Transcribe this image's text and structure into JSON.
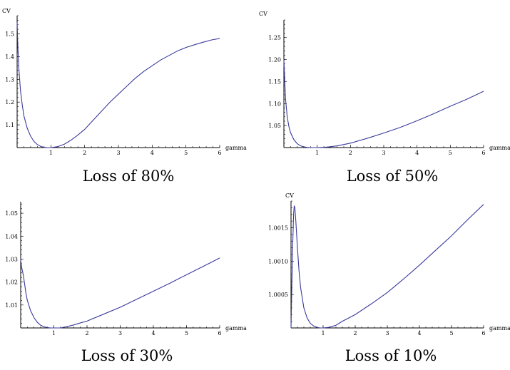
{
  "colors": {
    "curve": "#3a3a9c",
    "axis": "#000000"
  },
  "chart_data": [
    {
      "type": "line",
      "caption": "Loss of 80%",
      "xlabel": "gamma",
      "ylabel": "CV",
      "xlim": [
        0,
        6
      ],
      "ylim": [
        1.0,
        1.58
      ],
      "xticks": [
        1,
        2,
        3,
        4,
        5,
        6
      ],
      "yticks": [
        1.1,
        1.2,
        1.3,
        1.4,
        1.5
      ],
      "ytick_labels": [
        "1.1",
        "1.2",
        "1.3",
        "1.4",
        "1.5"
      ],
      "minor_yticks": 5,
      "grid": false,
      "series": [
        {
          "x": [
            0.0,
            0.02,
            0.05,
            0.1,
            0.15,
            0.2,
            0.3,
            0.4,
            0.5,
            0.6,
            0.7,
            0.8,
            0.9,
            1.0,
            1.2,
            1.4,
            1.6,
            1.8,
            2.0,
            2.25,
            2.5,
            2.75,
            3.0,
            3.25,
            3.5,
            3.75,
            4.0,
            4.25,
            4.5,
            4.75,
            5.0,
            5.25,
            5.5,
            5.75,
            6.0
          ],
          "y": [
            1.55,
            1.45,
            1.35,
            1.25,
            1.19,
            1.14,
            1.085,
            1.05,
            1.027,
            1.013,
            1.005,
            1.001,
            1.0,
            1.0,
            1.004,
            1.015,
            1.033,
            1.055,
            1.08,
            1.12,
            1.16,
            1.2,
            1.235,
            1.27,
            1.305,
            1.335,
            1.36,
            1.385,
            1.405,
            1.425,
            1.44,
            1.452,
            1.463,
            1.473,
            1.48
          ]
        }
      ]
    },
    {
      "type": "line",
      "caption": "Loss of 50%",
      "xlabel": "gamma",
      "ylabel": "CV",
      "xlim": [
        0,
        6
      ],
      "ylim": [
        1.0,
        1.29
      ],
      "xticks": [
        1,
        2,
        3,
        4,
        5,
        6
      ],
      "yticks": [
        1.05,
        1.1,
        1.15,
        1.2,
        1.25
      ],
      "ytick_labels": [
        "1.05",
        "1.10",
        "1.15",
        "1.20",
        "1.25"
      ],
      "minor_yticks": 5,
      "grid": false,
      "series": [
        {
          "x": [
            0.0,
            0.02,
            0.05,
            0.1,
            0.15,
            0.2,
            0.3,
            0.4,
            0.5,
            0.6,
            0.7,
            0.8,
            1.0,
            1.2,
            1.4,
            1.6,
            1.8,
            2.0,
            2.5,
            3.0,
            3.5,
            4.0,
            4.5,
            5.0,
            5.5,
            6.0
          ],
          "y": [
            1.2,
            1.16,
            1.11,
            1.07,
            1.048,
            1.034,
            1.018,
            1.009,
            1.004,
            1.0015,
            1.0005,
            1.0,
            1.0,
            1.0005,
            1.002,
            1.004,
            1.007,
            1.01,
            1.021,
            1.033,
            1.046,
            1.061,
            1.077,
            1.094,
            1.11,
            1.128
          ]
        }
      ]
    },
    {
      "type": "line",
      "caption": "Loss of 30%",
      "xlabel": "gamma",
      "ylabel": "",
      "xlim": [
        0,
        6
      ],
      "ylim": [
        1.0,
        1.055
      ],
      "xticks": [
        1,
        2,
        3,
        4,
        5,
        6
      ],
      "yticks": [
        1.01,
        1.02,
        1.03,
        1.04,
        1.05
      ],
      "ytick_labels": [
        "1.01",
        "1.02",
        "1.03",
        "1.04",
        "1.05"
      ],
      "minor_yticks": 5,
      "grid": false,
      "series": [
        {
          "x": [
            0.0,
            0.02,
            0.05,
            0.08,
            0.12,
            0.16,
            0.2,
            0.3,
            0.4,
            0.5,
            0.6,
            0.7,
            0.8,
            0.9,
            1.0,
            1.2,
            1.4,
            1.6,
            1.8,
            2.0,
            2.5,
            3.0,
            3.5,
            4.0,
            4.5,
            5.0,
            5.5,
            6.0
          ],
          "y": [
            1.03,
            1.027,
            1.025,
            1.023,
            1.019,
            1.015,
            1.012,
            1.0075,
            1.0045,
            1.0025,
            1.0012,
            1.0005,
            1.0002,
            1.0,
            1.0,
            1.0,
            1.0006,
            1.0013,
            1.0022,
            1.003,
            1.006,
            1.009,
            1.0125,
            1.016,
            1.0195,
            1.0232,
            1.0268,
            1.0305
          ]
        }
      ]
    },
    {
      "type": "line",
      "caption": "Loss of 10%",
      "xlabel": "gamma",
      "ylabel": "CV",
      "xlim": [
        0,
        6
      ],
      "ylim": [
        1.0,
        1.0019
      ],
      "xticks": [
        1,
        2,
        3,
        4,
        5,
        6
      ],
      "yticks": [
        1.0005,
        1.001,
        1.0015
      ],
      "ytick_labels": [
        "1.0005",
        "1.0010",
        "1.0015"
      ],
      "minor_yticks": 5,
      "grid": false,
      "series": [
        {
          "x": [
            0.0,
            0.02,
            0.05,
            0.08,
            0.1,
            0.12,
            0.15,
            0.2,
            0.25,
            0.3,
            0.4,
            0.5,
            0.6,
            0.7,
            0.8,
            0.9,
            1.0,
            1.2,
            1.4,
            1.6,
            1.8,
            2.0,
            2.5,
            3.0,
            3.5,
            4.0,
            4.5,
            5.0,
            5.5,
            6.0
          ],
          "y": [
            1.0,
            1.0005,
            1.0012,
            1.0017,
            1.00183,
            1.0018,
            1.0016,
            1.0012,
            1.00085,
            1.0006,
            1.0003,
            1.00015,
            1.00007,
            1.00003,
            1.00001,
            1.0,
            1.0,
            1.00001,
            1.00004,
            1.0001,
            1.00015,
            1.0002,
            1.00036,
            1.00053,
            1.00073,
            1.00094,
            1.00116,
            1.00138,
            1.00162,
            1.00185
          ]
        }
      ]
    }
  ]
}
